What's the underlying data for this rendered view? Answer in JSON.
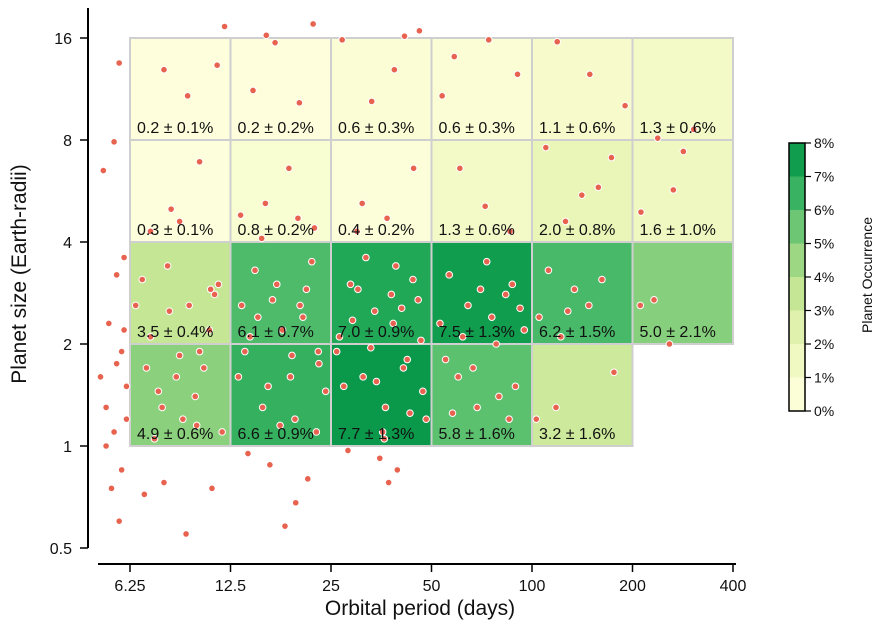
{
  "chart_data": {
    "type": "heatmap",
    "title": "",
    "xlabel": "Orbital period (days)",
    "ylabel": "Planet size (Earth-radii)",
    "x_scale": "log",
    "y_scale": "log",
    "x_ticks": [
      6.25,
      12.5,
      25,
      50,
      100,
      200,
      400
    ],
    "x_tick_labels": [
      "6.25",
      "12.5",
      "25",
      "50",
      "100",
      "200",
      "400"
    ],
    "y_ticks": [
      0.5,
      1,
      2,
      4,
      8,
      16
    ],
    "y_tick_labels": [
      "0.5",
      "1",
      "2",
      "4",
      "8",
      "16"
    ],
    "xlim": [
      4.8,
      430
    ],
    "ylim": [
      0.5,
      21
    ],
    "grid": false,
    "colorbar": {
      "label": "Planet Occurrence",
      "ticks": [
        0,
        1,
        2,
        3,
        4,
        5,
        6,
        7,
        8
      ],
      "tick_labels": [
        "0%",
        "1%",
        "2%",
        "3%",
        "4%",
        "5%",
        "6%",
        "7%",
        "8%"
      ],
      "range": [
        0,
        8
      ],
      "colors": [
        "#ffffe0",
        "#f8fcce",
        "#eaf6b8",
        "#d3ec9f",
        "#b4df8a",
        "#86cf7c",
        "#52bd6c",
        "#20a857",
        "#009144"
      ]
    },
    "cells": [
      {
        "period": [
          6.25,
          12.5
        ],
        "radius": [
          1,
          2
        ],
        "rate": 4.9,
        "err": 0.6,
        "label": "4.9 ± 0.6%"
      },
      {
        "period": [
          12.5,
          25
        ],
        "radius": [
          1,
          2
        ],
        "rate": 6.6,
        "err": 0.9,
        "label": "6.6 ± 0.9%"
      },
      {
        "period": [
          25,
          50
        ],
        "radius": [
          1,
          2
        ],
        "rate": 7.7,
        "err": 1.3,
        "label": "7.7 ± 1.3%"
      },
      {
        "period": [
          50,
          100
        ],
        "radius": [
          1,
          2
        ],
        "rate": 5.8,
        "err": 1.6,
        "label": "5.8 ± 1.6%"
      },
      {
        "period": [
          100,
          200
        ],
        "radius": [
          1,
          2
        ],
        "rate": 3.2,
        "err": 1.6,
        "label": "3.2 ± 1.6%"
      },
      {
        "period": [
          6.25,
          12.5
        ],
        "radius": [
          2,
          4
        ],
        "rate": 3.5,
        "err": 0.4,
        "label": "3.5 ± 0.4%"
      },
      {
        "period": [
          12.5,
          25
        ],
        "radius": [
          2,
          4
        ],
        "rate": 6.1,
        "err": 0.7,
        "label": "6.1 ± 0.7%"
      },
      {
        "period": [
          25,
          50
        ],
        "radius": [
          2,
          4
        ],
        "rate": 7.0,
        "err": 0.9,
        "label": "7.0 ± 0.9%"
      },
      {
        "period": [
          50,
          100
        ],
        "radius": [
          2,
          4
        ],
        "rate": 7.5,
        "err": 1.3,
        "label": "7.5 ± 1.3%"
      },
      {
        "period": [
          100,
          200
        ],
        "radius": [
          2,
          4
        ],
        "rate": 6.2,
        "err": 1.5,
        "label": "6.2 ± 1.5%"
      },
      {
        "period": [
          200,
          400
        ],
        "radius": [
          2,
          4
        ],
        "rate": 5.0,
        "err": 2.1,
        "label": "5.0 ± 2.1%"
      },
      {
        "period": [
          6.25,
          12.5
        ],
        "radius": [
          4,
          8
        ],
        "rate": 0.3,
        "err": 0.1,
        "label": "0.3 ± 0.1%"
      },
      {
        "period": [
          12.5,
          25
        ],
        "radius": [
          4,
          8
        ],
        "rate": 0.8,
        "err": 0.2,
        "label": "0.8 ± 0.2%"
      },
      {
        "period": [
          25,
          50
        ],
        "radius": [
          4,
          8
        ],
        "rate": 0.4,
        "err": 0.2,
        "label": "0.4 ± 0.2%"
      },
      {
        "period": [
          50,
          100
        ],
        "radius": [
          4,
          8
        ],
        "rate": 1.3,
        "err": 0.6,
        "label": "1.3 ± 0.6%"
      },
      {
        "period": [
          100,
          200
        ],
        "radius": [
          4,
          8
        ],
        "rate": 2.0,
        "err": 0.8,
        "label": "2.0 ± 0.8%"
      },
      {
        "period": [
          200,
          400
        ],
        "radius": [
          4,
          8
        ],
        "rate": 1.6,
        "err": 1.0,
        "label": "1.6 ± 1.0%"
      },
      {
        "period": [
          6.25,
          12.5
        ],
        "radius": [
          8,
          16
        ],
        "rate": 0.2,
        "err": 0.1,
        "label": "0.2 ± 0.1%"
      },
      {
        "period": [
          12.5,
          25
        ],
        "radius": [
          8,
          16
        ],
        "rate": 0.2,
        "err": 0.2,
        "label": "0.2 ± 0.2%"
      },
      {
        "period": [
          25,
          50
        ],
        "radius": [
          8,
          16
        ],
        "rate": 0.6,
        "err": 0.3,
        "label": "0.6 ± 0.3%"
      },
      {
        "period": [
          50,
          100
        ],
        "radius": [
          8,
          16
        ],
        "rate": 0.6,
        "err": 0.3,
        "label": "0.6 ± 0.3%"
      },
      {
        "period": [
          100,
          200
        ],
        "radius": [
          8,
          16
        ],
        "rate": 1.1,
        "err": 0.6,
        "label": "1.1 ± 0.6%"
      },
      {
        "period": [
          200,
          400
        ],
        "radius": [
          8,
          16
        ],
        "rate": 1.3,
        "err": 0.6,
        "label": "1.3 ± 0.6%"
      }
    ],
    "scatter": {
      "name": "",
      "color": "#e8634f",
      "points": [
        [
          5.3,
          1.3
        ],
        [
          5.1,
          1.6
        ],
        [
          5.6,
          1.1
        ],
        [
          5.8,
          0.6
        ],
        [
          5.5,
          0.75
        ],
        [
          5.9,
          1.9
        ],
        [
          6.0,
          2.2
        ],
        [
          5.4,
          2.3
        ],
        [
          5.7,
          3.2
        ],
        [
          5.2,
          6.5
        ],
        [
          5.6,
          7.9
        ],
        [
          5.8,
          13.5
        ],
        [
          6.1,
          1.5
        ],
        [
          6.0,
          3.6
        ],
        [
          5.9,
          0.85
        ],
        [
          5.3,
          1.0
        ],
        [
          5.7,
          1.75
        ],
        [
          6.1,
          1.2
        ],
        [
          7.0,
          1.7
        ],
        [
          7.8,
          1.3
        ],
        [
          8.2,
          2.5
        ],
        [
          9.0,
          1.2
        ],
        [
          10.1,
          1.9
        ],
        [
          11.2,
          2.8
        ],
        [
          6.8,
          3.1
        ],
        [
          7.4,
          1.05
        ],
        [
          8.6,
          1.6
        ],
        [
          9.8,
          1.4
        ],
        [
          10.8,
          2.2
        ],
        [
          11.8,
          1.1
        ],
        [
          7.2,
          2.1
        ],
        [
          8.1,
          3.4
        ],
        [
          9.4,
          2.6
        ],
        [
          10.4,
          1.7
        ],
        [
          11.5,
          3.0
        ],
        [
          7.6,
          1.45
        ],
        [
          8.8,
          1.85
        ],
        [
          9.9,
          1.15
        ],
        [
          10.9,
          2.9
        ],
        [
          6.5,
          2.6
        ],
        [
          7.9,
          0.78
        ],
        [
          9.2,
          0.55
        ],
        [
          11.0,
          0.75
        ],
        [
          6.9,
          0.72
        ],
        [
          8.3,
          5.0
        ],
        [
          10.1,
          6.9
        ],
        [
          9.3,
          10.8
        ],
        [
          7.9,
          12.9
        ],
        [
          11.4,
          13.3
        ],
        [
          12.0,
          17.3
        ],
        [
          7.2,
          4.3
        ],
        [
          8.8,
          4.6
        ],
        [
          13.5,
          2.6
        ],
        [
          14.8,
          3.3
        ],
        [
          16.2,
          1.5
        ],
        [
          17.9,
          2.2
        ],
        [
          19.5,
          1.2
        ],
        [
          21.1,
          2.9
        ],
        [
          23.0,
          1.75
        ],
        [
          13.8,
          1.9
        ],
        [
          15.6,
          1.3
        ],
        [
          17.2,
          3.0
        ],
        [
          18.9,
          1.6
        ],
        [
          20.6,
          2.4
        ],
        [
          22.6,
          1.1
        ],
        [
          14.3,
          2.1
        ],
        [
          16.7,
          2.7
        ],
        [
          19.1,
          1.85
        ],
        [
          21.9,
          3.5
        ],
        [
          24.1,
          1.45
        ],
        [
          13.2,
          1.6
        ],
        [
          15.1,
          2.4
        ],
        [
          17.6,
          1.15
        ],
        [
          20.2,
          2.6
        ],
        [
          22.9,
          1.9
        ],
        [
          14.1,
          0.95
        ],
        [
          16.4,
          0.88
        ],
        [
          19.6,
          0.68
        ],
        [
          18.2,
          0.58
        ],
        [
          21.3,
          0.8
        ],
        [
          13.4,
          4.8
        ],
        [
          15.9,
          5.2
        ],
        [
          18.7,
          6.6
        ],
        [
          22.3,
          4.4
        ],
        [
          14.6,
          11.2
        ],
        [
          17.0,
          15.5
        ],
        [
          20.1,
          10.3
        ],
        [
          22.1,
          17.6
        ],
        [
          16.0,
          16.3
        ],
        [
          15.5,
          4.1
        ],
        [
          19.9,
          4.7
        ],
        [
          26.5,
          2.1
        ],
        [
          28.6,
          3.0
        ],
        [
          31.2,
          1.6
        ],
        [
          33.8,
          2.5
        ],
        [
          36.4,
          1.3
        ],
        [
          39.1,
          3.4
        ],
        [
          42.3,
          1.8
        ],
        [
          45.6,
          2.7
        ],
        [
          48.2,
          1.2
        ],
        [
          27.3,
          1.5
        ],
        [
          30.1,
          2.9
        ],
        [
          32.9,
          1.95
        ],
        [
          35.7,
          1.1
        ],
        [
          38.4,
          2.3
        ],
        [
          41.2,
          1.7
        ],
        [
          44.0,
          3.1
        ],
        [
          47.1,
          1.45
        ],
        [
          29.0,
          2.35
        ],
        [
          34.2,
          1.55
        ],
        [
          37.9,
          2.8
        ],
        [
          43.1,
          1.25
        ],
        [
          46.5,
          2.05
        ],
        [
          26.0,
          1.9
        ],
        [
          31.8,
          3.6
        ],
        [
          36.1,
          1.05
        ],
        [
          40.7,
          2.55
        ],
        [
          35.0,
          0.92
        ],
        [
          37.2,
          0.78
        ],
        [
          39.5,
          0.85
        ],
        [
          28.1,
          0.97
        ],
        [
          31.0,
          5.2
        ],
        [
          36.8,
          4.7
        ],
        [
          44.2,
          6.6
        ],
        [
          27.0,
          15.8
        ],
        [
          38.7,
          12.9
        ],
        [
          41.5,
          16.2
        ],
        [
          33.1,
          10.4
        ],
        [
          46.0,
          16.8
        ],
        [
          29.9,
          4.3
        ],
        [
          53.0,
          2.3
        ],
        [
          56.5,
          3.2
        ],
        [
          60.1,
          1.6
        ],
        [
          64.3,
          2.6
        ],
        [
          68.5,
          1.3
        ],
        [
          73.2,
          3.5
        ],
        [
          78.1,
          2.0
        ],
        [
          83.4,
          2.8
        ],
        [
          89.2,
          1.5
        ],
        [
          94.8,
          2.2
        ],
        [
          55.1,
          1.8
        ],
        [
          62.0,
          2.1
        ],
        [
          70.1,
          2.9
        ],
        [
          79.6,
          1.4
        ],
        [
          87.3,
          3.0
        ],
        [
          57.8,
          1.25
        ],
        [
          66.6,
          1.7
        ],
        [
          75.8,
          2.4
        ],
        [
          85.4,
          1.2
        ],
        [
          92.1,
          2.55
        ],
        [
          60.8,
          6.6
        ],
        [
          72.4,
          5.1
        ],
        [
          86.0,
          4.3
        ],
        [
          58.5,
          14.1
        ],
        [
          74.2,
          15.8
        ],
        [
          53.8,
          10.8
        ],
        [
          90.5,
          12.5
        ],
        [
          105.0,
          2.4
        ],
        [
          112.0,
          3.3
        ],
        [
          122.0,
          2.1
        ],
        [
          134.0,
          2.9
        ],
        [
          148.0,
          2.6
        ],
        [
          162.0,
          3.1
        ],
        [
          118.0,
          1.3
        ],
        [
          103.0,
          1.2
        ],
        [
          176.0,
          1.65
        ],
        [
          128.0,
          2.5
        ],
        [
          110.0,
          7.6
        ],
        [
          126.0,
          4.6
        ],
        [
          141.0,
          5.5
        ],
        [
          158.0,
          5.8
        ],
        [
          173.0,
          7.1
        ],
        [
          119.0,
          15.6
        ],
        [
          149.0,
          12.5
        ],
        [
          190.0,
          10.1
        ],
        [
          211.0,
          2.6
        ],
        [
          232.0,
          2.7
        ],
        [
          258.0,
          2.0
        ],
        [
          238.0,
          8.1
        ],
        [
          265.0,
          5.7
        ],
        [
          284.0,
          7.4
        ],
        [
          305.0,
          8.6
        ],
        [
          212.0,
          4.9
        ]
      ]
    }
  }
}
